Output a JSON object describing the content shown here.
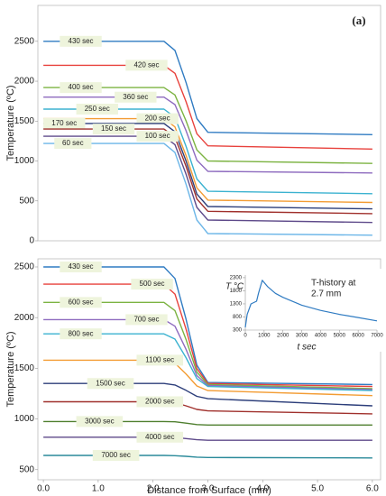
{
  "chart_data": [
    {
      "type": "line",
      "annotation": "(a)",
      "y_label": "Temperature (ºC)",
      "xlim": [
        -0.1,
        6.15
      ],
      "ylim": [
        0,
        2950
      ],
      "yticks": [
        0,
        500,
        1000,
        1500,
        2000,
        2500
      ],
      "x": [
        0,
        2.2,
        2.4,
        2.6,
        2.8,
        3.0,
        6.0
      ],
      "series": [
        {
          "name": "430 sec",
          "color": "#2f7bc2",
          "values": [
            2500,
            2500,
            2386,
            1987,
            1531,
            1360,
            1330
          ]
        },
        {
          "name": "420 sec",
          "color": "#e8413c",
          "values": [
            2200,
            2200,
            2099,
            1746,
            1342,
            1190,
            1150
          ]
        },
        {
          "name": "400 sec",
          "color": "#7cb342",
          "values": [
            1920,
            1920,
            1828,
            1506,
            1138,
            1000,
            970
          ]
        },
        {
          "name": "360 sec",
          "color": "#8e6bbf",
          "values": [
            1800,
            1800,
            1707,
            1382,
            1010,
            870,
            850
          ]
        },
        {
          "name": "250 sec",
          "color": "#3bb2d0",
          "values": [
            1650,
            1650,
            1547,
            1187,
            775,
            620,
            590
          ]
        },
        {
          "name": "200 sec",
          "color": "#f39c33",
          "values": [
            1530,
            1530,
            1428,
            1071,
            663,
            510,
            480
          ]
        },
        {
          "name": "170 sec",
          "color": "#2c3e7a",
          "values": [
            1470,
            1470,
            1366,
            1002,
            586,
            430,
            400
          ]
        },
        {
          "name": "150 sec",
          "color": "#a0302c",
          "values": [
            1400,
            1400,
            1297,
            937,
            525,
            370,
            340
          ]
        },
        {
          "name": "100 sec",
          "color": "#5e4a8a",
          "values": [
            1310,
            1310,
            1205,
            838,
            418,
            260,
            230
          ]
        },
        {
          "name": "60 sec",
          "color": "#6cb6e8",
          "values": [
            1220,
            1220,
            1107,
            712,
            260,
            90,
            70
          ]
        }
      ]
    },
    {
      "type": "line",
      "annotation": "(b)",
      "y_label": "Temperature (ºC)",
      "x_label": "Distance from Surface (mm)",
      "xlim": [
        -0.1,
        6.15
      ],
      "ylim": [
        400,
        2580
      ],
      "yticks": [
        500,
        1000,
        1500,
        2000,
        2500
      ],
      "xticks": [
        {
          "value": 0,
          "label": "0.0"
        },
        {
          "value": 1,
          "label": "1.0"
        },
        {
          "value": 2,
          "label": "2.0"
        },
        {
          "value": 3,
          "label": "3.0"
        },
        {
          "value": 4,
          "label": "4.0"
        },
        {
          "value": 5,
          "label": "5.0"
        },
        {
          "value": 6,
          "label": "6.0"
        }
      ],
      "x": [
        0,
        2.2,
        2.4,
        2.6,
        2.8,
        3.0,
        6.0
      ],
      "series": [
        {
          "name": "430 sec",
          "color": "#2f7bc2",
          "values": [
            2500,
            2500,
            2386,
            1987,
            1531,
            1360,
            1340
          ]
        },
        {
          "name": "500 sec",
          "color": "#e8413c",
          "values": [
            2330,
            2330,
            2232,
            1889,
            1497,
            1350,
            1320
          ]
        },
        {
          "name": "600 sec",
          "color": "#7cb342",
          "values": [
            2150,
            2150,
            2069,
            1786,
            1462,
            1340,
            1300
          ]
        },
        {
          "name": "700 sec",
          "color": "#8e6bbf",
          "values": [
            1980,
            1980,
            1915,
            1688,
            1428,
            1330,
            1290
          ]
        },
        {
          "name": "800 sec",
          "color": "#3bb2d0",
          "values": [
            1840,
            1840,
            1788,
            1606,
            1398,
            1320,
            1280
          ]
        },
        {
          "name": "1100 sec",
          "color": "#f39c33",
          "values": [
            1580,
            1580,
            1550,
            1445,
            1325,
            1280,
            1230
          ]
        },
        {
          "name": "1500 sec",
          "color": "#2c3e7a",
          "values": [
            1350,
            1350,
            1335,
            1283,
            1223,
            1200,
            1130
          ]
        },
        {
          "name": "2000 sec",
          "color": "#a0302c",
          "values": [
            1170,
            1170,
            1161,
            1130,
            1094,
            1080,
            1050
          ]
        },
        {
          "name": "3000 sec",
          "color": "#4f7f2f",
          "values": [
            975,
            975,
            972,
            959,
            945,
            940,
            940
          ]
        },
        {
          "name": "4000 sec",
          "color": "#5e4a8a",
          "values": [
            820,
            820,
            817,
            807,
            795,
            790,
            790
          ]
        },
        {
          "name": "7000 sec",
          "color": "#2a8a9a",
          "values": [
            640,
            640,
            638,
            631,
            623,
            620,
            615
          ]
        }
      ]
    },
    {
      "type": "line",
      "annotation_lines": [
        "T-history at",
        "2.7 mm"
      ],
      "y_label": "T °C",
      "x_label": "t sec",
      "xlim": [
        0,
        7000
      ],
      "ylim": [
        300,
        2400
      ],
      "xticks": [
        0,
        1000,
        2000,
        3000,
        4000,
        5000,
        6000,
        7000
      ],
      "yticks": [
        300,
        800,
        1300,
        1800,
        2300
      ],
      "x": [
        0,
        100,
        300,
        600,
        700,
        900,
        1200,
        1600,
        2000,
        3000,
        4000,
        5000,
        6000,
        7000
      ],
      "series": [
        {
          "color": "#2f7bc2",
          "values": [
            400,
            900,
            1300,
            1400,
            1700,
            2200,
            1950,
            1700,
            1550,
            1250,
            1050,
            900,
            780,
            650
          ]
        }
      ]
    }
  ]
}
